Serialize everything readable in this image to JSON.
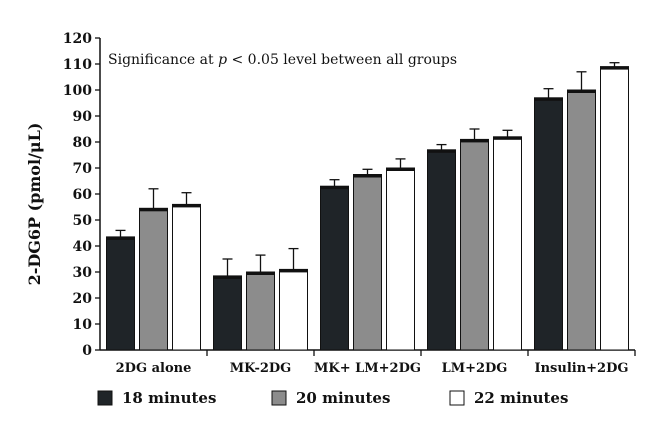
{
  "chart_data": {
    "type": "bar",
    "ylabel": "2-DG6P (pmol/μL)",
    "xlabel": "",
    "ylim": [
      0,
      120
    ],
    "yticks": [
      0,
      10,
      20,
      30,
      40,
      50,
      60,
      70,
      80,
      90,
      100,
      110,
      120
    ],
    "categories": [
      "2DG alone",
      "MK-2DG",
      "MK+ LM+2DG",
      "LM+2DG",
      "Insulin+2DG"
    ],
    "series": [
      {
        "name": "18 minutes",
        "color": "#1f2428",
        "values": [
          43.5,
          28.5,
          63,
          77,
          97
        ],
        "errors": [
          2.5,
          6.5,
          2.5,
          2,
          3.5
        ]
      },
      {
        "name": "20 minutes",
        "color": "#8c8c8c",
        "values": [
          54.5,
          30,
          67.5,
          81,
          100
        ],
        "errors": [
          7.5,
          6.5,
          2,
          4,
          7
        ]
      },
      {
        "name": "22 minutes",
        "color": "#ffffff",
        "values": [
          56,
          31,
          70,
          82,
          109
        ],
        "errors": [
          4.5,
          8,
          3.5,
          2.5,
          1.5
        ]
      }
    ],
    "annotation_parts": [
      "Significance at ",
      "p",
      " < 0.05 level between all groups"
    ],
    "grid": false,
    "legend_position": "bottom"
  }
}
